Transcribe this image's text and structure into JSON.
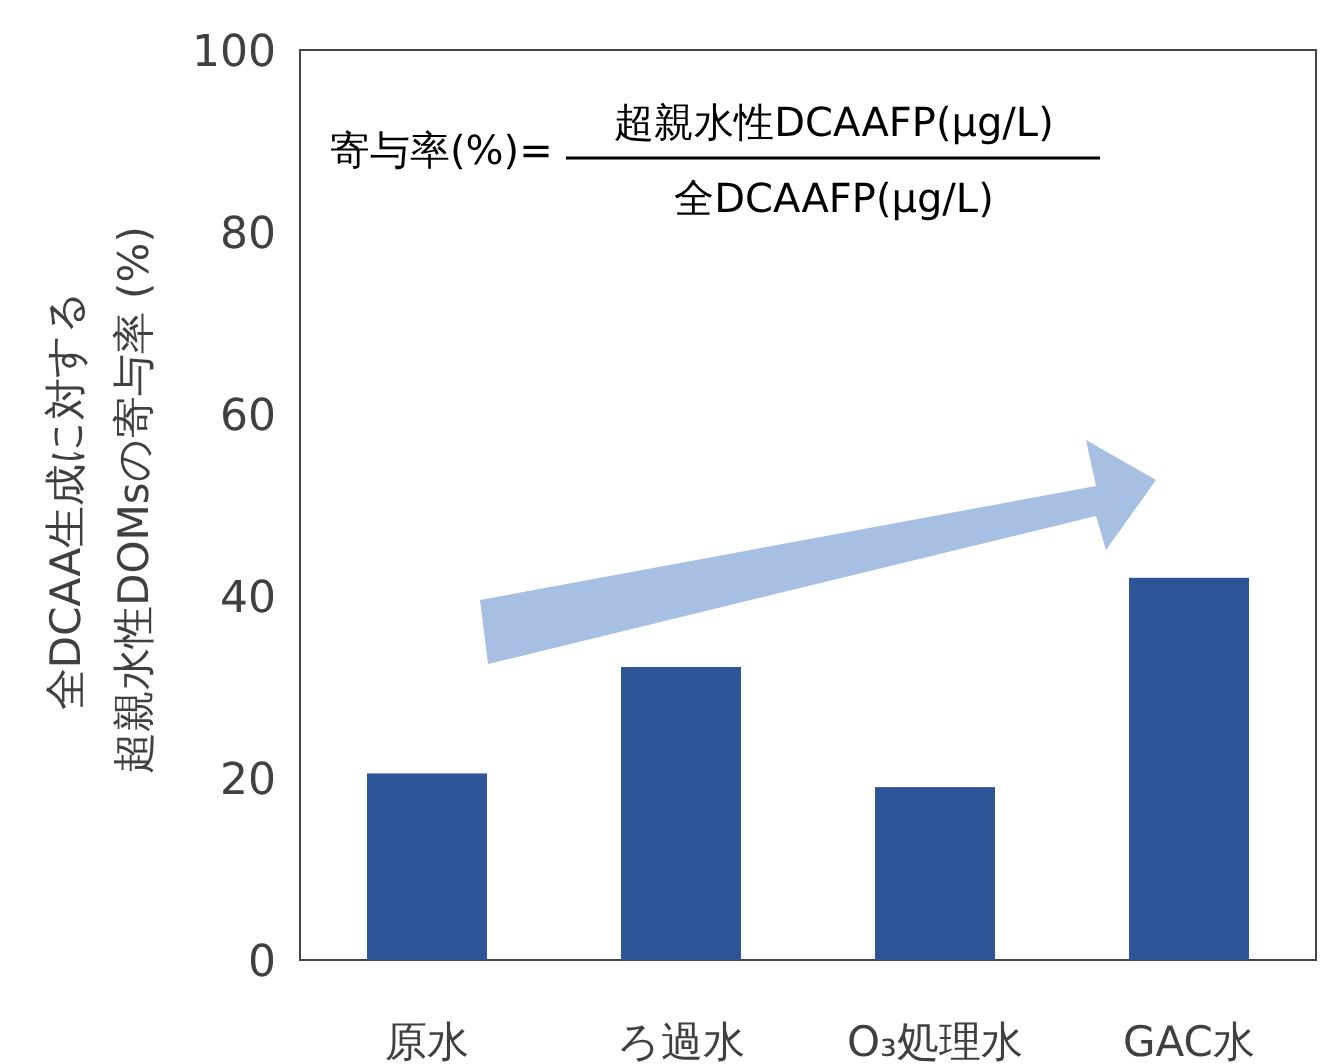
{
  "chart_data": {
    "type": "bar",
    "ylabel": "全DCAA生成に対する超親水性DOMsの寄与率 (%)",
    "categories": [
      "原水",
      "ろ過水",
      "O₃処理水",
      "GAC水"
    ],
    "values": [
      20.5,
      32.2,
      19,
      42
    ],
    "color": "#2e5597",
    "ylim": [
      0,
      100
    ],
    "yticks": [
      0,
      20,
      40,
      60,
      80,
      100
    ],
    "grid": false,
    "annotations": [
      "寄与率(%)=",
      "超親水性DCAAFP(μg/L)",
      "全DCAAFP(μg/L)"
    ]
  }
}
